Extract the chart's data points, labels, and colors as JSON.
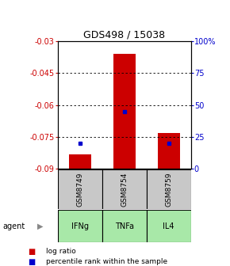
{
  "title": "GDS498 / 15038",
  "ylim_left": [
    -0.09,
    -0.03
  ],
  "ylim_right": [
    0,
    100
  ],
  "yticks_left": [
    -0.09,
    -0.075,
    -0.06,
    -0.045,
    -0.03
  ],
  "yticks_right": [
    0,
    25,
    50,
    75,
    100
  ],
  "ytick_labels_left": [
    "-0.09",
    "-0.075",
    "-0.06",
    "-0.045",
    "-0.03"
  ],
  "ytick_labels_right": [
    "0",
    "25",
    "50",
    "75",
    "100%"
  ],
  "samples": [
    "GSM8749",
    "GSM8754",
    "GSM8759"
  ],
  "agents": [
    "IFNg",
    "TNFa",
    "IL4"
  ],
  "bar_bottoms": [
    -0.09,
    -0.09,
    -0.09
  ],
  "bar_tops": [
    -0.083,
    -0.036,
    -0.073
  ],
  "bar_color": "#cc0000",
  "dot_color": "#0000cc",
  "dot_pcts": [
    20,
    45,
    20
  ],
  "x_positions": [
    1,
    2,
    3
  ],
  "bar_width": 0.5,
  "gsm_box_color": "#c8c8c8",
  "agent_box_color": "#a8e8a8",
  "legend_red_label": "log ratio",
  "legend_blue_label": "percentile rank within the sample",
  "left_color": "#cc0000",
  "right_color": "#0000cc",
  "agent_label": "agent",
  "background_color": "#ffffff",
  "title_fontsize": 9,
  "tick_fontsize": 7,
  "bar_label_fontsize": 6.5,
  "agent_fontsize": 7
}
